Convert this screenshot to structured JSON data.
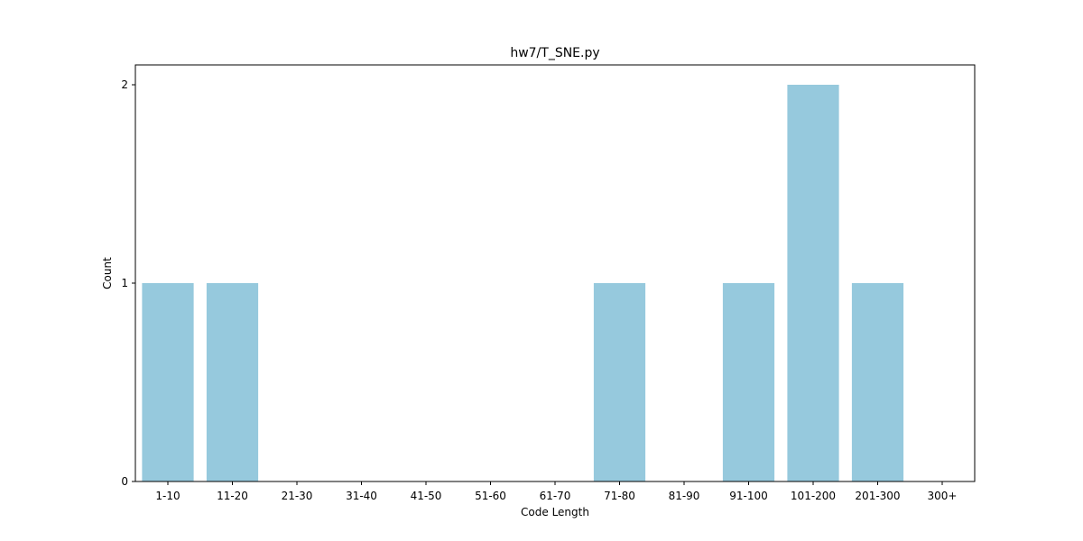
{
  "chart_data": {
    "type": "bar",
    "title": "hw7/T_SNE.py",
    "xlabel": "Code Length",
    "ylabel": "Count",
    "categories": [
      "1-10",
      "11-20",
      "21-30",
      "31-40",
      "41-50",
      "51-60",
      "61-70",
      "71-80",
      "81-90",
      "91-100",
      "101-200",
      "201-300",
      "300+"
    ],
    "values": [
      1,
      1,
      0,
      0,
      0,
      0,
      0,
      1,
      0,
      1,
      2,
      1,
      0
    ],
    "ylim": [
      0,
      2.1
    ],
    "yticks": [
      0,
      1,
      2
    ],
    "grid": false,
    "legend": "none",
    "bar_color": "#96c9dd"
  }
}
